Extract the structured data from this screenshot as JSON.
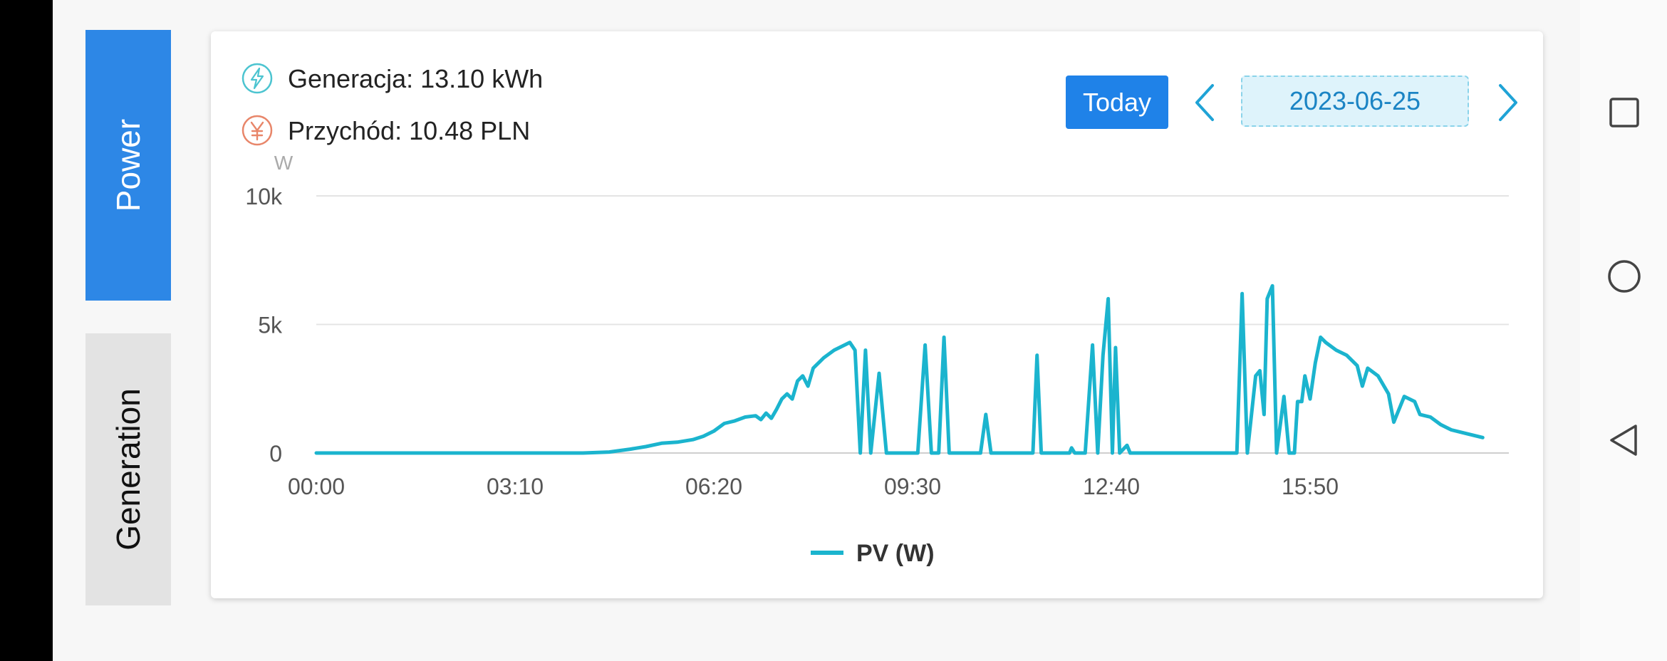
{
  "tabs": [
    {
      "label": "Power",
      "active": true
    },
    {
      "label": "Generation",
      "active": false
    }
  ],
  "stats": {
    "generation": {
      "label": "Generacja:",
      "value": "13.10 kWh",
      "icon": "lightning-icon",
      "color": "#4cc4d0"
    },
    "revenue": {
      "label": "Przychód:",
      "value": "10.48 PLN",
      "icon": "yen-icon",
      "color": "#e8866a"
    }
  },
  "date_nav": {
    "today_label": "Today",
    "date": "2023-06-25"
  },
  "colors": {
    "accent": "#2d87e6",
    "series": "#1bb4ce"
  },
  "chart_data": {
    "type": "line",
    "unit_label": "W",
    "xlabel": "",
    "ylabel": "",
    "x_ticks": [
      "00:00",
      "03:10",
      "06:20",
      "09:30",
      "12:40",
      "15:50"
    ],
    "y_ticks": [
      "0",
      "5k",
      "10k"
    ],
    "ylim": [
      0,
      10000
    ],
    "xlim": [
      "00:00",
      "19:00"
    ],
    "grid": true,
    "legend_position": "bottom-center",
    "series": [
      {
        "name": "PV (W)",
        "points": [
          [
            "00:00",
            0
          ],
          [
            "04:15",
            0
          ],
          [
            "04:40",
            40
          ],
          [
            "05:00",
            150
          ],
          [
            "05:15",
            250
          ],
          [
            "05:30",
            380
          ],
          [
            "05:45",
            420
          ],
          [
            "06:00",
            520
          ],
          [
            "06:10",
            650
          ],
          [
            "06:20",
            850
          ],
          [
            "06:30",
            1150
          ],
          [
            "06:40",
            1250
          ],
          [
            "06:50",
            1400
          ],
          [
            "07:00",
            1450
          ],
          [
            "07:05",
            1300
          ],
          [
            "07:10",
            1550
          ],
          [
            "07:15",
            1350
          ],
          [
            "07:20",
            1700
          ],
          [
            "07:25",
            2100
          ],
          [
            "07:30",
            2300
          ],
          [
            "07:35",
            2100
          ],
          [
            "07:40",
            2800
          ],
          [
            "07:45",
            3000
          ],
          [
            "07:50",
            2600
          ],
          [
            "07:55",
            3300
          ],
          [
            "08:05",
            3700
          ],
          [
            "08:15",
            4000
          ],
          [
            "08:25",
            4200
          ],
          [
            "08:30",
            4300
          ],
          [
            "08:35",
            4000
          ],
          [
            "08:40",
            0
          ],
          [
            "08:45",
            4000
          ],
          [
            "08:50",
            0
          ],
          [
            "08:58",
            3100
          ],
          [
            "09:05",
            0
          ],
          [
            "09:35",
            0
          ],
          [
            "09:42",
            4200
          ],
          [
            "09:48",
            0
          ],
          [
            "09:55",
            0
          ],
          [
            "10:00",
            4500
          ],
          [
            "10:05",
            0
          ],
          [
            "10:35",
            0
          ],
          [
            "10:40",
            1500
          ],
          [
            "10:45",
            0
          ],
          [
            "11:25",
            0
          ],
          [
            "11:29",
            3800
          ],
          [
            "11:33",
            0
          ],
          [
            "12:00",
            0
          ],
          [
            "12:02",
            200
          ],
          [
            "12:05",
            0
          ],
          [
            "12:15",
            0
          ],
          [
            "12:22",
            4200
          ],
          [
            "12:27",
            0
          ],
          [
            "12:32",
            3800
          ],
          [
            "12:37",
            6000
          ],
          [
            "12:41",
            0
          ],
          [
            "12:44",
            4100
          ],
          [
            "12:48",
            0
          ],
          [
            "12:55",
            300
          ],
          [
            "12:58",
            0
          ],
          [
            "14:40",
            0
          ],
          [
            "14:45",
            6200
          ],
          [
            "14:50",
            0
          ],
          [
            "14:58",
            3000
          ],
          [
            "15:02",
            3200
          ],
          [
            "15:06",
            1500
          ],
          [
            "15:09",
            6000
          ],
          [
            "15:14",
            6500
          ],
          [
            "15:18",
            0
          ],
          [
            "15:25",
            2200
          ],
          [
            "15:30",
            0
          ],
          [
            "15:35",
            0
          ],
          [
            "15:38",
            2000
          ],
          [
            "15:42",
            2000
          ],
          [
            "15:45",
            3000
          ],
          [
            "15:50",
            2100
          ],
          [
            "15:55",
            3500
          ],
          [
            "16:00",
            4500
          ],
          [
            "16:05",
            4300
          ],
          [
            "16:15",
            4000
          ],
          [
            "16:25",
            3800
          ],
          [
            "16:35",
            3400
          ],
          [
            "16:40",
            2600
          ],
          [
            "16:45",
            3300
          ],
          [
            "16:55",
            3000
          ],
          [
            "17:05",
            2300
          ],
          [
            "17:10",
            1200
          ],
          [
            "17:20",
            2200
          ],
          [
            "17:30",
            2000
          ],
          [
            "17:35",
            1500
          ],
          [
            "17:45",
            1400
          ],
          [
            "17:55",
            1100
          ],
          [
            "18:05",
            900
          ],
          [
            "18:20",
            750
          ],
          [
            "18:35",
            600
          ]
        ]
      }
    ]
  }
}
